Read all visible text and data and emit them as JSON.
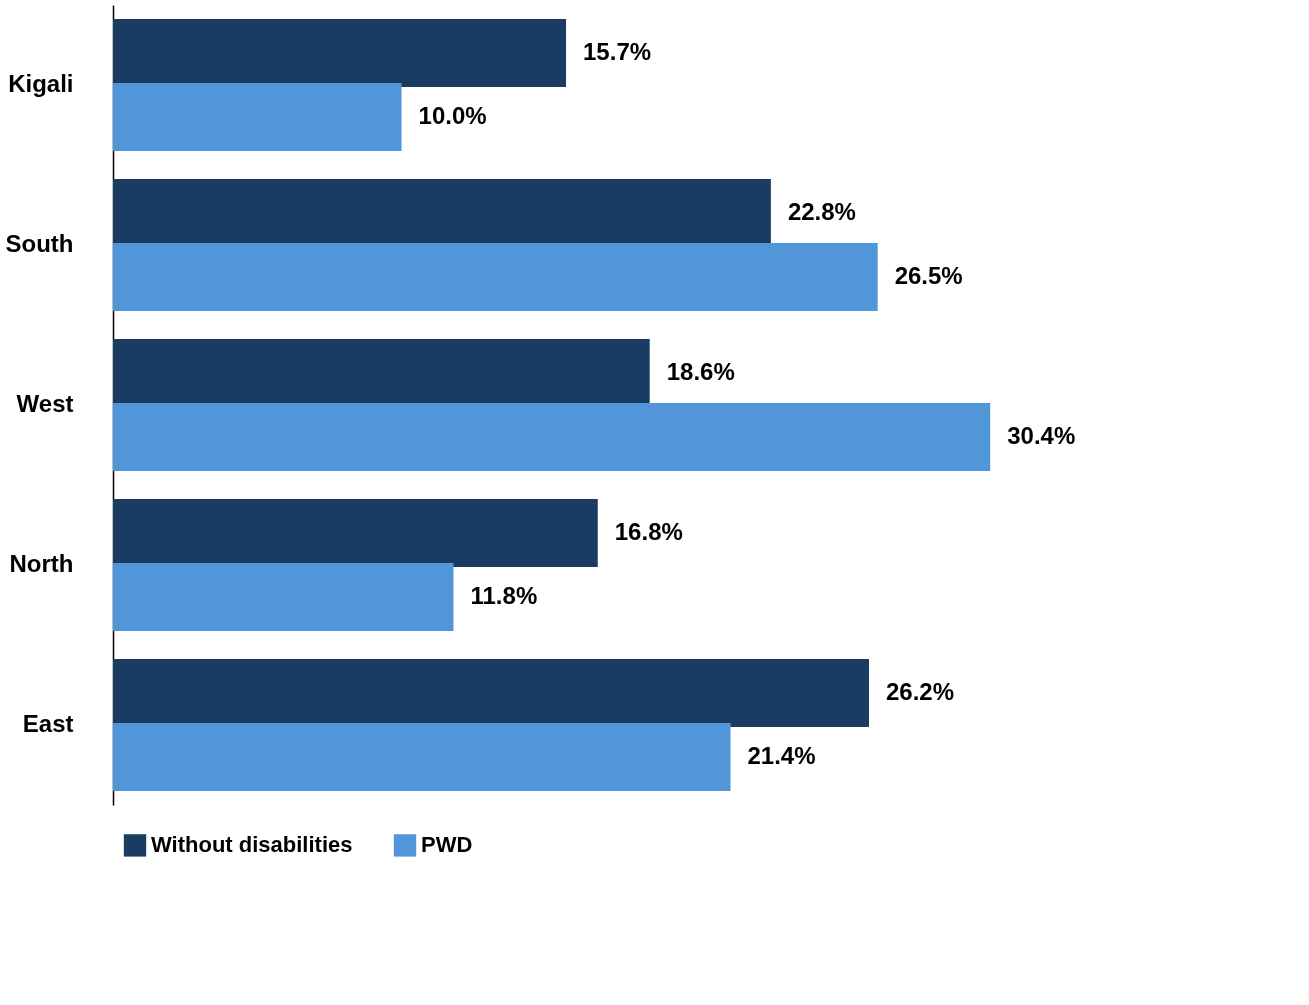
{
  "chart_data": {
    "type": "bar",
    "orientation": "horizontal",
    "categories": [
      "Kigali",
      "South",
      "West",
      "North",
      "East"
    ],
    "series": [
      {
        "name": "Without disabilities",
        "color": "#1a3c63",
        "values": [
          15.7,
          22.8,
          18.6,
          16.8,
          26.2
        ],
        "value_labels": [
          "15.7%",
          "22.8%",
          "18.6%",
          "16.8%",
          "26.2%"
        ]
      },
      {
        "name": "PWD",
        "color": "#5096d9",
        "values": [
          10.0,
          26.5,
          30.4,
          11.8,
          21.4
        ],
        "value_labels": [
          "10.0%",
          "26.5%",
          "30.4%",
          "11.8%",
          "21.4%"
        ]
      }
    ],
    "legend": "bottom",
    "grid": false
  }
}
